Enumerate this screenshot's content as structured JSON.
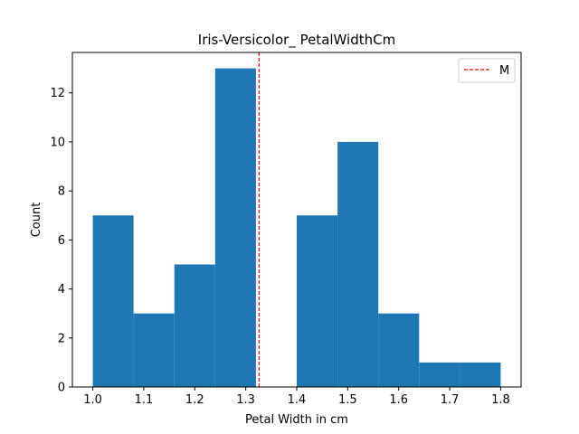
{
  "chart_data": {
    "type": "bar",
    "title": "Iris-Versicolor_ PetalWidthCm",
    "xlabel": "Petal Width in cm",
    "ylabel": "Count",
    "bin_edges": [
      1.0,
      1.08,
      1.16,
      1.24,
      1.32,
      1.4,
      1.48,
      1.56,
      1.64,
      1.72,
      1.8
    ],
    "values": [
      7,
      3,
      5,
      13,
      0,
      7,
      10,
      3,
      1,
      1
    ],
    "xlim": [
      0.96,
      1.84
    ],
    "ylim": [
      0,
      13.65
    ],
    "xticks": [
      "1.0",
      "1.1",
      "1.2",
      "1.3",
      "1.4",
      "1.5",
      "1.6",
      "1.7",
      "1.8"
    ],
    "xtick_values": [
      1.0,
      1.1,
      1.2,
      1.3,
      1.4,
      1.5,
      1.6,
      1.7,
      1.8
    ],
    "yticks": [
      "0",
      "2",
      "4",
      "6",
      "8",
      "10",
      "12"
    ],
    "ytick_values": [
      0,
      2,
      4,
      6,
      8,
      10,
      12
    ],
    "mean_line": {
      "value": 1.326,
      "label": "M",
      "color": "#ff0000"
    },
    "bar_color": "#1f77b4",
    "grid": false,
    "legend_position": "top-right"
  }
}
